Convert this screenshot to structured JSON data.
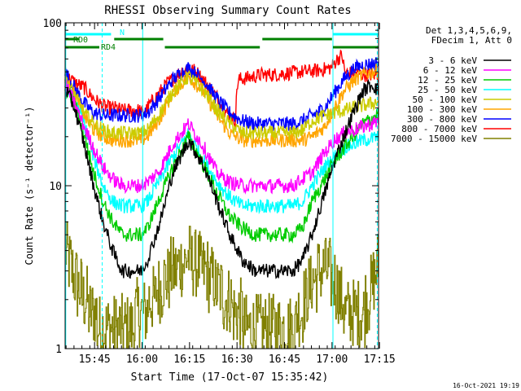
{
  "chart_data": {
    "type": "line",
    "title": "RHESSI Observing Summary Count Rates",
    "xlabel": "Start Time (17-Oct-07 15:35:42)",
    "ylabel": "Count Rate (s⁻¹ detector⁻¹)",
    "y_scale": "log",
    "ylim": [
      1,
      100
    ],
    "xlim_minutes": [
      0,
      99
    ],
    "x_ticks": [
      {
        "label": "15:45",
        "minute": 9.3
      },
      {
        "label": "16:00",
        "minute": 24.3
      },
      {
        "label": "16:15",
        "minute": 39.3
      },
      {
        "label": "16:30",
        "minute": 54.3
      },
      {
        "label": "16:45",
        "minute": 69.3
      },
      {
        "label": "17:00",
        "minute": 84.3
      },
      {
        "label": "17:15",
        "minute": 99.3
      }
    ],
    "y_ticks": [
      {
        "label": "1",
        "value": 1
      },
      {
        "label": "10",
        "value": 10
      },
      {
        "label": "100",
        "value": 100
      }
    ],
    "legend_header": [
      "Det 1,3,4,5,6,9,",
      "FDecim 1, Att 0"
    ],
    "series": [
      {
        "name": "3 - 6 keV",
        "color": "#000000",
        "x": [
          0,
          3,
          6,
          9,
          12,
          15,
          18,
          22,
          24,
          26,
          30,
          34,
          39,
          44,
          48,
          52,
          56,
          60,
          64,
          68,
          72,
          75,
          78,
          82,
          85,
          88,
          91,
          94,
          97,
          99
        ],
        "y": [
          40,
          30,
          18,
          10,
          6,
          4,
          3,
          3,
          3,
          3.5,
          6,
          12,
          19,
          13,
          8,
          5,
          3.5,
          3,
          3,
          3,
          3,
          3.5,
          5,
          9,
          14,
          20,
          28,
          38,
          42,
          38
        ]
      },
      {
        "name": "6 - 12 keV",
        "color": "#ff00ff",
        "x": [
          0,
          3,
          6,
          9,
          12,
          15,
          18,
          22,
          24,
          26,
          30,
          34,
          39,
          44,
          48,
          52,
          56,
          60,
          64,
          68,
          72,
          75,
          78,
          82,
          85,
          88,
          91,
          94,
          97,
          99
        ],
        "y": [
          42,
          32,
          23,
          17,
          13,
          11,
          10,
          10,
          10,
          10.5,
          12.5,
          18,
          24,
          17,
          12,
          10.5,
          10,
          10,
          10,
          10,
          10,
          11,
          12,
          16,
          19,
          21,
          22,
          23,
          24,
          25
        ]
      },
      {
        "name": "12 - 25 keV",
        "color": "#00cc00",
        "x": [
          0,
          3,
          6,
          9,
          12,
          15,
          18,
          22,
          24,
          26,
          30,
          34,
          39,
          44,
          48,
          52,
          56,
          60,
          64,
          68,
          72,
          75,
          78,
          82,
          85,
          88,
          91,
          94,
          97,
          99
        ],
        "y": [
          40,
          32,
          21,
          12,
          8,
          6,
          5,
          5,
          5,
          5.5,
          8.5,
          13,
          20,
          13,
          9,
          6.5,
          5.5,
          5,
          5,
          5,
          5,
          5.5,
          8,
          11,
          14,
          17,
          20,
          24,
          26,
          28
        ]
      },
      {
        "name": "25 - 50 keV",
        "color": "#00ffff",
        "x": [
          0,
          3,
          6,
          9,
          12,
          15,
          18,
          22,
          24,
          26,
          30,
          34,
          39,
          44,
          48,
          52,
          56,
          60,
          64,
          68,
          72,
          75,
          78,
          82,
          85,
          88,
          91,
          94,
          97,
          99
        ],
        "y": [
          40,
          33,
          24,
          15,
          10,
          8,
          7.5,
          7.5,
          7.5,
          8,
          11,
          15,
          21,
          14,
          10.5,
          8.5,
          7.5,
          7.5,
          7.5,
          7.5,
          7.5,
          8,
          10,
          13,
          15,
          17,
          18,
          19,
          19.5,
          20
        ]
      },
      {
        "name": "50 - 100 keV",
        "color": "#cccc00",
        "x": [
          0,
          3,
          6,
          9,
          12,
          15,
          18,
          22,
          24,
          26,
          30,
          34,
          39,
          44,
          48,
          52,
          56,
          60,
          64,
          68,
          72,
          75,
          78,
          82,
          85,
          88,
          91,
          94,
          97,
          99
        ],
        "y": [
          44,
          36,
          28,
          24,
          22,
          21,
          21,
          21,
          21,
          22,
          28,
          38,
          47,
          38,
          29,
          24,
          21,
          21,
          21,
          21,
          21,
          22,
          25,
          27,
          28,
          29,
          30,
          31,
          32,
          33
        ]
      },
      {
        "name": "100 - 300 keV",
        "color": "#ffa500",
        "x": [
          0,
          3,
          6,
          9,
          12,
          15,
          18,
          22,
          24,
          26,
          30,
          34,
          39,
          44,
          48,
          52,
          56,
          60,
          64,
          68,
          72,
          75,
          78,
          82,
          85,
          88,
          91,
          94,
          97,
          99
        ],
        "y": [
          44,
          36,
          27,
          22,
          20,
          19,
          19,
          19,
          19,
          20,
          26,
          37,
          47,
          37,
          27,
          21,
          19,
          19,
          19,
          19,
          19,
          19,
          20,
          23,
          30,
          38,
          44,
          48,
          50,
          51
        ]
      },
      {
        "name": "300 - 800 keV",
        "color": "#0000ff",
        "x": [
          0,
          3,
          6,
          9,
          12,
          15,
          18,
          22,
          24,
          26,
          30,
          34,
          39,
          44,
          48,
          52,
          56,
          60,
          64,
          68,
          72,
          75,
          78,
          82,
          85,
          88,
          91,
          94,
          97,
          99
        ],
        "y": [
          50,
          40,
          32,
          28,
          27,
          27,
          27,
          27,
          27,
          28,
          35,
          45,
          53,
          44,
          34,
          28,
          25,
          24,
          24,
          24,
          24,
          25,
          27,
          30,
          37,
          45,
          52,
          55,
          56,
          57
        ]
      },
      {
        "name": "800 - 7000 keV",
        "color": "#ff0000",
        "x": [
          0,
          0.8,
          1.6,
          2.4,
          3.2,
          4,
          4.8,
          6,
          7,
          8,
          8.6,
          9.2,
          10,
          12,
          14,
          16,
          18,
          20,
          22,
          24,
          24.3,
          27,
          32,
          37,
          41,
          44,
          48,
          51,
          53.8,
          54.3,
          55,
          58,
          62,
          66,
          70,
          75,
          80,
          84,
          86,
          87.5,
          88.3,
          89.5,
          92,
          95,
          98,
          99
        ],
        "y": [
          47,
          46,
          45,
          44,
          43,
          42,
          41,
          40,
          38,
          36,
          35,
          34,
          33,
          31,
          30,
          30,
          29,
          29,
          29,
          29,
          27,
          32,
          42,
          51,
          51,
          44,
          35,
          28,
          25,
          41,
          45,
          46,
          48,
          48,
          49,
          50,
          51,
          53,
          60,
          63,
          50,
          49,
          49,
          48,
          48,
          47
        ]
      },
      {
        "name": "7000 - 15000 keV",
        "color": "#808000",
        "x": [
          0,
          3,
          6,
          9,
          12,
          15,
          18,
          22,
          24,
          26,
          30,
          34,
          39,
          44,
          48,
          52,
          56,
          60,
          64,
          68,
          72,
          75,
          78,
          82,
          85,
          88,
          91,
          94,
          97,
          99
        ],
        "y": [
          4,
          2.7,
          2,
          1.6,
          1.3,
          1.3,
          1.3,
          1.5,
          1.5,
          1.8,
          2.4,
          3,
          3.6,
          3,
          2.4,
          1.9,
          1.5,
          1.3,
          1.3,
          1.3,
          1.4,
          1.8,
          2.6,
          3.2,
          2.6,
          1.8,
          1.5,
          1.7,
          2.4,
          3.5
        ]
      }
    ],
    "annotations": [
      {
        "label": "N",
        "color": "#00ffff",
        "bar_minutes": [
          0,
          18
        ]
      },
      {
        "label": "RD0",
        "color": "#008000",
        "bar_minutes": [
          0,
          18
        ]
      },
      {
        "label": "RD4",
        "color": "#008000",
        "bar_minutes": [
          0,
          11
        ]
      }
    ],
    "timestamp": "16-Oct-2021 19:19"
  }
}
